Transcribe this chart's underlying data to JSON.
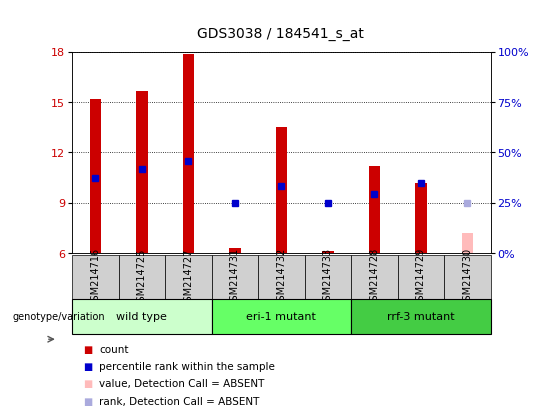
{
  "title": "GDS3038 / 184541_s_at",
  "samples": [
    "GSM214716",
    "GSM214725",
    "GSM214727",
    "GSM214731",
    "GSM214732",
    "GSM214733",
    "GSM214728",
    "GSM214729",
    "GSM214730"
  ],
  "counts": [
    15.2,
    15.65,
    17.85,
    6.3,
    13.5,
    6.1,
    11.2,
    10.2,
    null
  ],
  "ranks": [
    10.5,
    11.0,
    11.5,
    9.0,
    10.0,
    9.0,
    9.5,
    10.2,
    null
  ],
  "absent_count": [
    null,
    null,
    null,
    null,
    null,
    null,
    null,
    null,
    7.2
  ],
  "absent_rank": [
    null,
    null,
    null,
    null,
    null,
    null,
    null,
    null,
    9.0
  ],
  "count_color": "#cc0000",
  "rank_color": "#0000cc",
  "absent_count_color": "#ffbbbb",
  "absent_rank_color": "#aaaadd",
  "ylim_left": [
    6,
    18
  ],
  "ylim_right": [
    0,
    100
  ],
  "yticks_left": [
    6,
    9,
    12,
    15,
    18
  ],
  "yticks_right": [
    0,
    25,
    50,
    75,
    100
  ],
  "yticklabels_right": [
    "0%",
    "25%",
    "50%",
    "75%",
    "100%"
  ],
  "groups": [
    {
      "label": "wild type",
      "indices": [
        0,
        1,
        2
      ],
      "color": "#ccffcc"
    },
    {
      "label": "eri-1 mutant",
      "indices": [
        3,
        4,
        5
      ],
      "color": "#66ff66"
    },
    {
      "label": "rrf-3 mutant",
      "indices": [
        6,
        7,
        8
      ],
      "color": "#44cc44"
    }
  ],
  "group_label": "genotype/variation",
  "bar_width": 0.25,
  "bg_color": "#d0d0d0",
  "plot_bg": "#ffffff",
  "title_fontsize": 10,
  "tick_fontsize": 7,
  "label_fontsize": 7,
  "legend_fontsize": 7.5,
  "group_fontsize": 8
}
